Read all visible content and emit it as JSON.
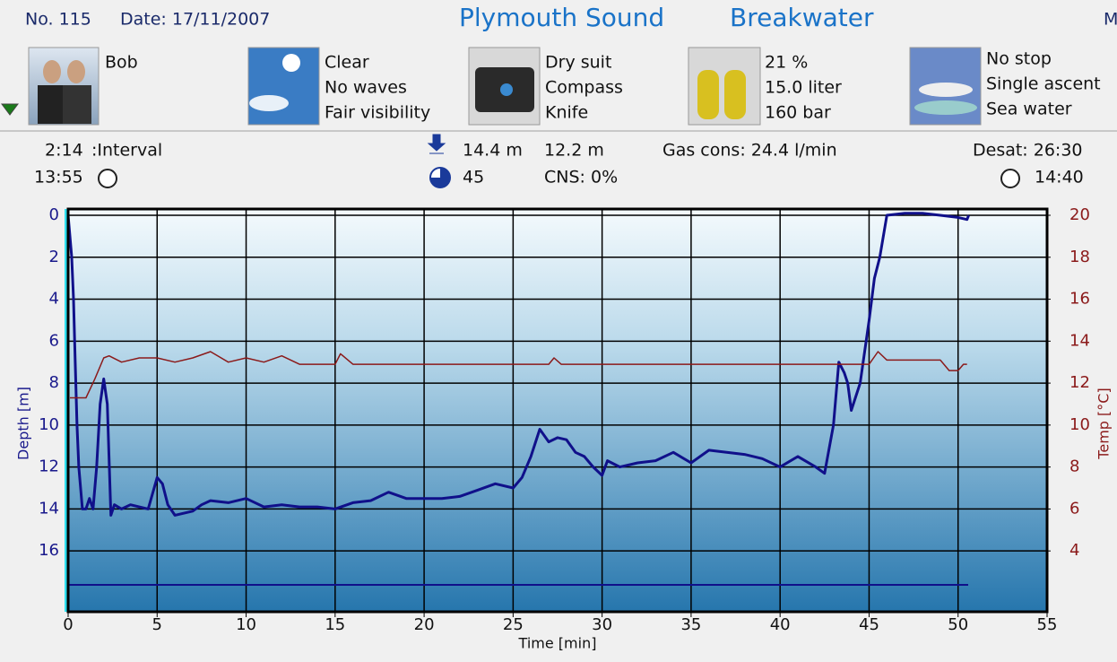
{
  "header": {
    "number": "No. 115",
    "date": "Date: 17/11/2007",
    "site": "Plymouth Sound",
    "location": "Breakwater",
    "cut": "M"
  },
  "items": [
    {
      "texts": [
        "Bob"
      ]
    },
    {
      "texts": [
        "Clear",
        "No waves",
        "Fair visibility"
      ]
    },
    {
      "texts": [
        "Dry suit",
        "Compass",
        "Knife"
      ]
    },
    {
      "texts": [
        "21 %",
        "15.0 liter",
        "160 bar"
      ]
    },
    {
      "texts": [
        "No stop",
        "Single ascent",
        "Sea water"
      ]
    }
  ],
  "stats": {
    "interval_time": "2:14",
    "interval_label": ":Interval",
    "start_time": "13:55",
    "max_depth": "14.4 m",
    "avg_depth": "12.2 m",
    "duration": "45",
    "cns": "CNS:  0%",
    "gas": "Gas cons: 24.4 l/min",
    "desat": "Desat: 26:30",
    "end_time": "14:40"
  },
  "chart_data": {
    "type": "line",
    "xlabel": "Time [min]",
    "ylabel": "Depth [m]",
    "y2label": "Temp [°C]",
    "xlim": [
      0,
      55
    ],
    "xticks": [
      0,
      5,
      10,
      15,
      20,
      25,
      30,
      35,
      40,
      45,
      50,
      55
    ],
    "ylim": [
      18.9,
      -0.3
    ],
    "yticks": [
      0,
      2,
      4,
      6,
      8,
      10,
      12,
      14,
      16
    ],
    "y2lim": [
      1.1,
      20.3
    ],
    "y2ticks": [
      4,
      6,
      8,
      10,
      12,
      14,
      16,
      18,
      20
    ],
    "grid": true,
    "series": [
      {
        "color": "#10108a",
        "x": [
          0,
          0.2,
          0.3,
          0.4,
          0.5,
          0.6,
          0.8,
          1.0,
          1.2,
          1.4,
          1.6,
          1.8,
          2.0,
          2.2,
          2.4,
          2.6,
          3,
          3.5,
          4,
          4.5,
          5,
          5.3,
          5.6,
          6,
          7,
          7.5,
          8,
          9,
          10,
          11,
          12,
          13,
          14,
          15,
          16,
          17,
          18,
          19,
          20,
          21,
          22,
          23,
          24,
          25,
          25.5,
          26,
          26.5,
          27,
          27.5,
          28,
          28.5,
          29,
          29.5,
          30,
          30.3,
          31,
          32,
          33,
          34,
          35,
          36,
          37,
          38,
          39,
          40,
          41,
          42,
          42.5,
          43,
          43.3,
          43.6,
          43.8,
          44,
          44.5,
          45,
          45.3,
          45.6,
          46,
          47,
          48,
          49,
          50,
          50.5,
          50.6
        ],
        "values": [
          0,
          2,
          4,
          7,
          10,
          12,
          14,
          14,
          13.5,
          14,
          12,
          9,
          7.8,
          9,
          14.3,
          13.8,
          14,
          13.8,
          13.9,
          14,
          12.5,
          12.8,
          13.8,
          14.3,
          14.1,
          13.8,
          13.6,
          13.7,
          13.5,
          13.9,
          13.8,
          13.9,
          13.9,
          14,
          13.7,
          13.6,
          13.2,
          13.5,
          13.5,
          13.5,
          13.4,
          13.1,
          12.8,
          13,
          12.5,
          11.5,
          10.2,
          10.8,
          10.6,
          10.7,
          11.3,
          11.5,
          12,
          12.4,
          11.7,
          12,
          11.8,
          11.7,
          11.3,
          11.8,
          11.2,
          11.3,
          11.4,
          11.6,
          12,
          11.5,
          12,
          12.3,
          10,
          7,
          7.5,
          8,
          9.3,
          8,
          5,
          3,
          2,
          0,
          -0.1,
          -0.1,
          0,
          0.1,
          0.2,
          0
        ]
      },
      {
        "color": "#8b1a1a",
        "axis": "y2",
        "x": [
          0.1,
          1.0,
          1.5,
          2,
          2.3,
          3,
          4,
          5,
          6,
          7,
          8,
          9,
          10,
          11,
          12,
          13,
          15,
          15.3,
          16,
          27,
          27.3,
          27.7,
          43,
          45,
          45.5,
          46,
          49,
          49.5,
          50,
          50.3,
          50.5
        ],
        "values": [
          11.3,
          11.3,
          12.2,
          13.2,
          13.3,
          13,
          13.2,
          13.2,
          13,
          13.2,
          13.5,
          13,
          13.2,
          13,
          13.3,
          12.9,
          12.9,
          13.4,
          12.9,
          12.9,
          13.2,
          12.9,
          12.9,
          12.9,
          13.5,
          13.1,
          13.1,
          12.6,
          12.6,
          12.9,
          12.9
        ]
      }
    ]
  }
}
